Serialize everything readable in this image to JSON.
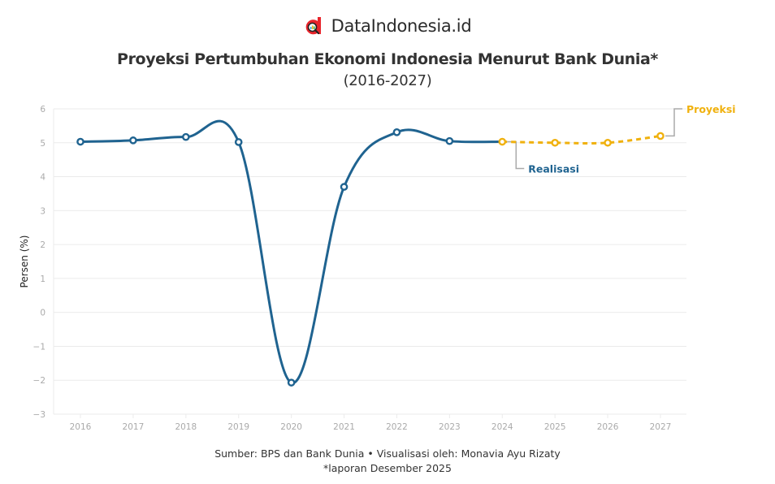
{
  "brand": {
    "name": "DataIndonesia.id",
    "logo_icon": "magnifier-d-logo-icon",
    "logo_color": "#e8242b"
  },
  "header": {
    "title": "Proyeksi Pertumbuhan Ekonomi Indonesia Menurut Bank Dunia*",
    "subtitle": "(2016-2027)"
  },
  "footer": {
    "source": "Sumber: BPS dan Bank Dunia • Visualisasi oleh: Monavia Ayu Rizaty",
    "note": "*laporan Desember 2025"
  },
  "colors": {
    "realisasi": "#1f6390",
    "proyeksi": "#f0b10e",
    "grid": "#ebebeb",
    "tick": "#aaaaaa",
    "leader": "#aaaaaa"
  },
  "chart_data": {
    "type": "line",
    "title": "Proyeksi Pertumbuhan Ekonomi Indonesia Menurut Bank Dunia*",
    "subtitle": "(2016-2027)",
    "xlabel": "",
    "ylabel": "Persen (%)",
    "ylim": [
      -3,
      6
    ],
    "yticks": [
      6,
      5,
      4,
      3,
      2,
      1,
      0,
      -1,
      -2,
      -3
    ],
    "grid": true,
    "x": [
      "2016",
      "2017",
      "2018",
      "2019",
      "2020",
      "2021",
      "2022",
      "2023",
      "2024",
      "2025",
      "2026",
      "2027"
    ],
    "series": [
      {
        "name": "Realisasi",
        "color": "#1f6390",
        "style": "solid",
        "x": [
          "2016",
          "2017",
          "2018",
          "2019",
          "2020",
          "2021",
          "2022",
          "2023",
          "2024"
        ],
        "values": [
          5.03,
          5.07,
          5.17,
          5.02,
          -2.07,
          3.7,
          5.31,
          5.05,
          5.03
        ]
      },
      {
        "name": "Proyeksi",
        "color": "#f0b10e",
        "style": "dashed",
        "x": [
          "2024",
          "2025",
          "2026",
          "2027"
        ],
        "values": [
          5.03,
          5.0,
          5.0,
          5.2
        ]
      }
    ],
    "annotations": [
      {
        "text": "Realisasi",
        "anchor_x": "2024",
        "color": "#1f6390"
      },
      {
        "text": "Proyeksi",
        "anchor_x": "2027",
        "color": "#f0b10e"
      }
    ],
    "source": "Sumber: BPS dan Bank Dunia • Visualisasi oleh: Monavia Ayu Rizaty",
    "note": "*laporan Desember 2025"
  }
}
